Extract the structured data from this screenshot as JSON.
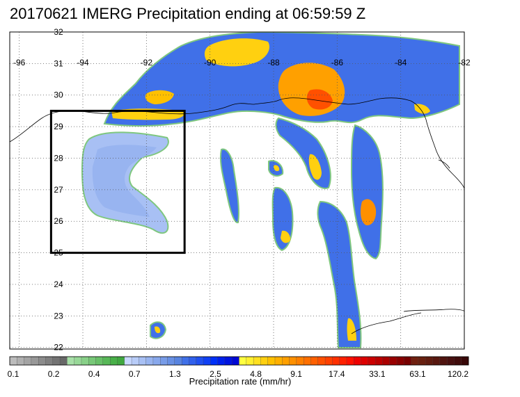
{
  "title": "20170621 IMERG Precipitation ending at 06:59:59 Z",
  "map": {
    "lon_ticks": [
      {
        "value": -96,
        "label": "-96"
      },
      {
        "value": -94,
        "label": "-94"
      },
      {
        "value": -92,
        "label": "-92"
      },
      {
        "value": -90,
        "label": "-90"
      },
      {
        "value": -88,
        "label": "-88"
      },
      {
        "value": -86,
        "label": "-86"
      },
      {
        "value": -84,
        "label": "-84"
      },
      {
        "value": -82,
        "label": "-82"
      }
    ],
    "lat_ticks": [
      {
        "value": 32,
        "label": "32"
      },
      {
        "value": 31,
        "label": "31"
      },
      {
        "value": 30,
        "label": "30"
      },
      {
        "value": 29,
        "label": "29"
      },
      {
        "value": 28,
        "label": "28"
      },
      {
        "value": 27,
        "label": "27"
      },
      {
        "value": 26,
        "label": "26"
      },
      {
        "value": 25,
        "label": "25"
      },
      {
        "value": 24,
        "label": "24"
      },
      {
        "value": 23,
        "label": "23"
      },
      {
        "value": 22,
        "label": "22"
      }
    ],
    "lon_range": [
      -96.3,
      -82
    ],
    "lat_range": [
      21.95,
      32
    ],
    "box": {
      "lon_min": -95,
      "lon_max": -90.8,
      "lat_min": 25,
      "lat_max": 29.5
    }
  },
  "colorbar": {
    "title": "Precipitation rate (mm/hr)",
    "labels": [
      "0.1",
      "0.2",
      "0.4",
      "0.7",
      "1.3",
      "2.5",
      "4.8",
      "9.1",
      "17.4",
      "33.1",
      "63.1",
      "120.2"
    ],
    "colors": [
      "#bcbcbc",
      "#b0b0b0",
      "#a4a4a4",
      "#989898",
      "#8c8c8c",
      "#808080",
      "#747474",
      "#686868",
      "#a8e0a8",
      "#98d898",
      "#88d088",
      "#78c878",
      "#68c068",
      "#58b858",
      "#48b048",
      "#40a840",
      "#c8d8ff",
      "#b8ccf8",
      "#a8c0f4",
      "#98b4f0",
      "#88a8ec",
      "#789ce8",
      "#6890e4",
      "#5884e0",
      "#4070e8",
      "#3060ec",
      "#2050f0",
      "#1040f4",
      "#0030f8",
      "#0020ec",
      "#0014e0",
      "#0008d4",
      "#ffff40",
      "#fff030",
      "#ffe020",
      "#ffd010",
      "#ffc000",
      "#ffb000",
      "#ffa000",
      "#ff9000",
      "#ff8000",
      "#ff7000",
      "#ff6000",
      "#ff5000",
      "#ff4000",
      "#ff3000",
      "#ff2000",
      "#ff1000",
      "#ee0000",
      "#dd0000",
      "#cc0000",
      "#bb0000",
      "#aa0000",
      "#990000",
      "#880000",
      "#770000",
      "#702010",
      "#682010",
      "#601c10",
      "#581810",
      "#501410",
      "#481010",
      "#400c0c",
      "#380808"
    ]
  }
}
